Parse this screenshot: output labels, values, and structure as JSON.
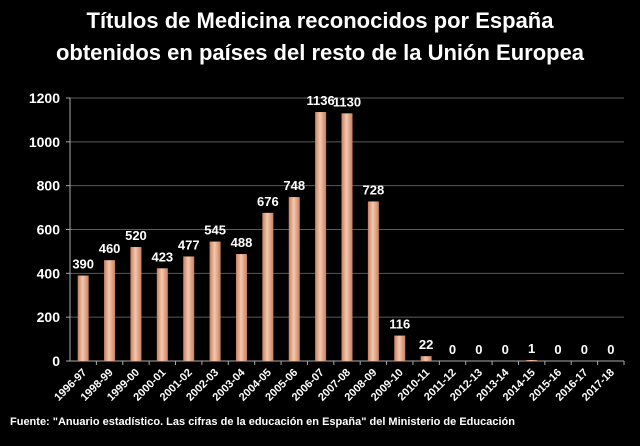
{
  "chart_data": {
    "type": "bar",
    "title_line1": "Títulos de Medicina reconocidos por España",
    "title_line2": "obtenidos en países del resto de la Unión Europea",
    "categories": [
      "1996-97",
      "1998-99",
      "1999-00",
      "2000-01",
      "2001-02",
      "2002-03",
      "2003-04",
      "2004-05",
      "2005-06",
      "2006-07",
      "2007-08",
      "2008-09",
      "2009-10",
      "2010-11",
      "2011-12",
      "2012-13",
      "2013-14",
      "2014-15",
      "2015-16",
      "2016-17",
      "2017-18"
    ],
    "values": [
      390,
      460,
      520,
      423,
      477,
      545,
      488,
      676,
      748,
      1136,
      1130,
      728,
      116,
      22,
      0,
      0,
      0,
      1,
      0,
      0,
      0
    ],
    "ylim": [
      0,
      1200
    ],
    "yticks": [
      0,
      200,
      400,
      600,
      800,
      1000,
      1200
    ],
    "grid": true,
    "legend": "none",
    "bar_color_light": "#f4c8ad",
    "bar_color_dark": "#c88060",
    "source": "Fuente: \"Anuario estadístico. Las cifras de la educación en España\" del Ministerio de Educación"
  }
}
